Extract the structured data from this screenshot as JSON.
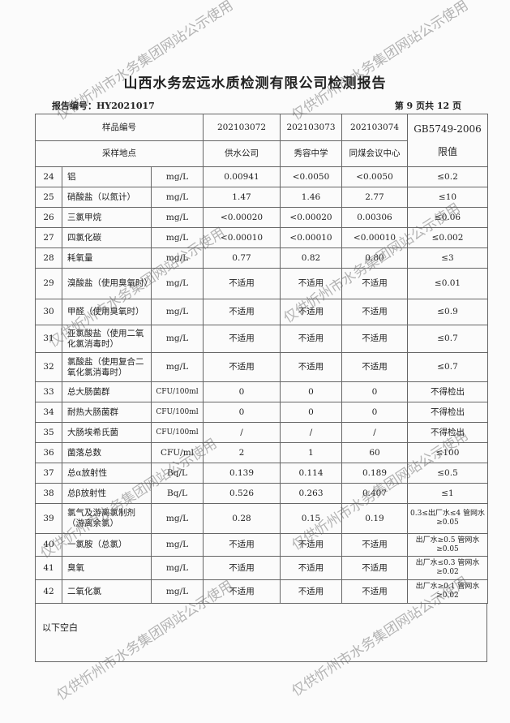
{
  "title": "山西水务宏远水质检测有限公司检测报告",
  "report_no": "报告编号：HY2021017",
  "page_info": "第 9 页共 12 页",
  "header": {
    "sample_no_label": "样品编号",
    "site_label": "采样地点",
    "limit_label": "GB5749-2006 限值",
    "samples": [
      {
        "no": "202103072",
        "site": "供水公司"
      },
      {
        "no": "202103073",
        "site": "秀容中学"
      },
      {
        "no": "202103074",
        "site": "同煤会议中心"
      }
    ]
  },
  "rows": [
    {
      "n": "24",
      "name": "铝",
      "unit": "mg/L",
      "v": [
        "0.00941",
        "<0.0050",
        "<0.0050"
      ],
      "limit": "≤0.2"
    },
    {
      "n": "25",
      "name": "硝酸盐（以氮计）",
      "unit": "mg/L",
      "v": [
        "1.47",
        "1.46",
        "2.77"
      ],
      "limit": "≤10"
    },
    {
      "n": "26",
      "name": "三氯甲烷",
      "unit": "mg/L",
      "v": [
        "<0.00020",
        "<0.00020",
        "0.00306"
      ],
      "limit": "≤0.06"
    },
    {
      "n": "27",
      "name": "四氯化碳",
      "unit": "mg/L",
      "v": [
        "<0.00010",
        "<0.00010",
        "<0.00010"
      ],
      "limit": "≤0.002"
    },
    {
      "n": "28",
      "name": "耗氧量",
      "unit": "mg/L",
      "v": [
        "0.77",
        "0.82",
        "0.80"
      ],
      "limit": "≤3"
    },
    {
      "n": "29",
      "name": "溴酸盐（使用臭氧时）",
      "unit": "mg/L",
      "v": [
        "不适用",
        "不适用",
        "不适用"
      ],
      "limit": "≤0.01"
    },
    {
      "n": "30",
      "name": "甲醛（使用臭氧时）",
      "unit": "mg/L",
      "v": [
        "不适用",
        "不适用",
        "不适用"
      ],
      "limit": "≤0.9"
    },
    {
      "n": "31",
      "name": "亚氯酸盐（使用二氧化氯消毒时）",
      "unit": "mg/L",
      "v": [
        "不适用",
        "不适用",
        "不适用"
      ],
      "limit": "≤0.7"
    },
    {
      "n": "32",
      "name": "氯酸盐（使用复合二氧化氯消毒时）",
      "unit": "mg/L",
      "v": [
        "不适用",
        "不适用",
        "不适用"
      ],
      "limit": "≤0.7"
    },
    {
      "n": "33",
      "name": "总大肠菌群",
      "unit": "CFU/100ml",
      "v": [
        "0",
        "0",
        "0"
      ],
      "limit": "不得检出"
    },
    {
      "n": "34",
      "name": "耐热大肠菌群",
      "unit": "CFU/100ml",
      "v": [
        "0",
        "0",
        "0"
      ],
      "limit": "不得检出"
    },
    {
      "n": "35",
      "name": "大肠埃希氏菌",
      "unit": "CFU/100ml",
      "v": [
        "/",
        "/",
        "/"
      ],
      "limit": "不得检出"
    },
    {
      "n": "36",
      "name": "菌落总数",
      "unit": "CFU/ml",
      "v": [
        "2",
        "1",
        "60"
      ],
      "limit": "≤100"
    },
    {
      "n": "37",
      "name": "总α放射性",
      "unit": "Bq/L",
      "v": [
        "0.139",
        "0.114",
        "0.189"
      ],
      "limit": "≤0.5"
    },
    {
      "n": "38",
      "name": "总β放射性",
      "unit": "Bq/L",
      "v": [
        "0.526",
        "0.263",
        "0.407"
      ],
      "limit": "≤1"
    },
    {
      "n": "39",
      "name": "氯气及游离氯制剂（游离余氯）",
      "unit": "mg/L",
      "v": [
        "0.28",
        "0.15",
        "0.19"
      ],
      "limit": "0.3≤出厂水≤4 管网水≥0.05",
      "small": true
    },
    {
      "n": "40",
      "name": "一氯胺（总氯）",
      "unit": "mg/L",
      "v": [
        "不适用",
        "不适用",
        "不适用"
      ],
      "limit": "出厂水≥0.5 管网水≥0.05",
      "small": true
    },
    {
      "n": "41",
      "name": "臭氧",
      "unit": "mg/L",
      "v": [
        "不适用",
        "不适用",
        "不适用"
      ],
      "limit": "出厂水≤0.3 管网水≥0.02",
      "small": true
    },
    {
      "n": "42",
      "name": "二氧化氯",
      "unit": "mg/L",
      "v": [
        "不适用",
        "不适用",
        "不适用"
      ],
      "limit": "出厂水≥0.1 管网水≥0.02",
      "small": true
    }
  ],
  "remark": "以下空白",
  "watermark": "仅供忻州市水务集团网站公示使用"
}
